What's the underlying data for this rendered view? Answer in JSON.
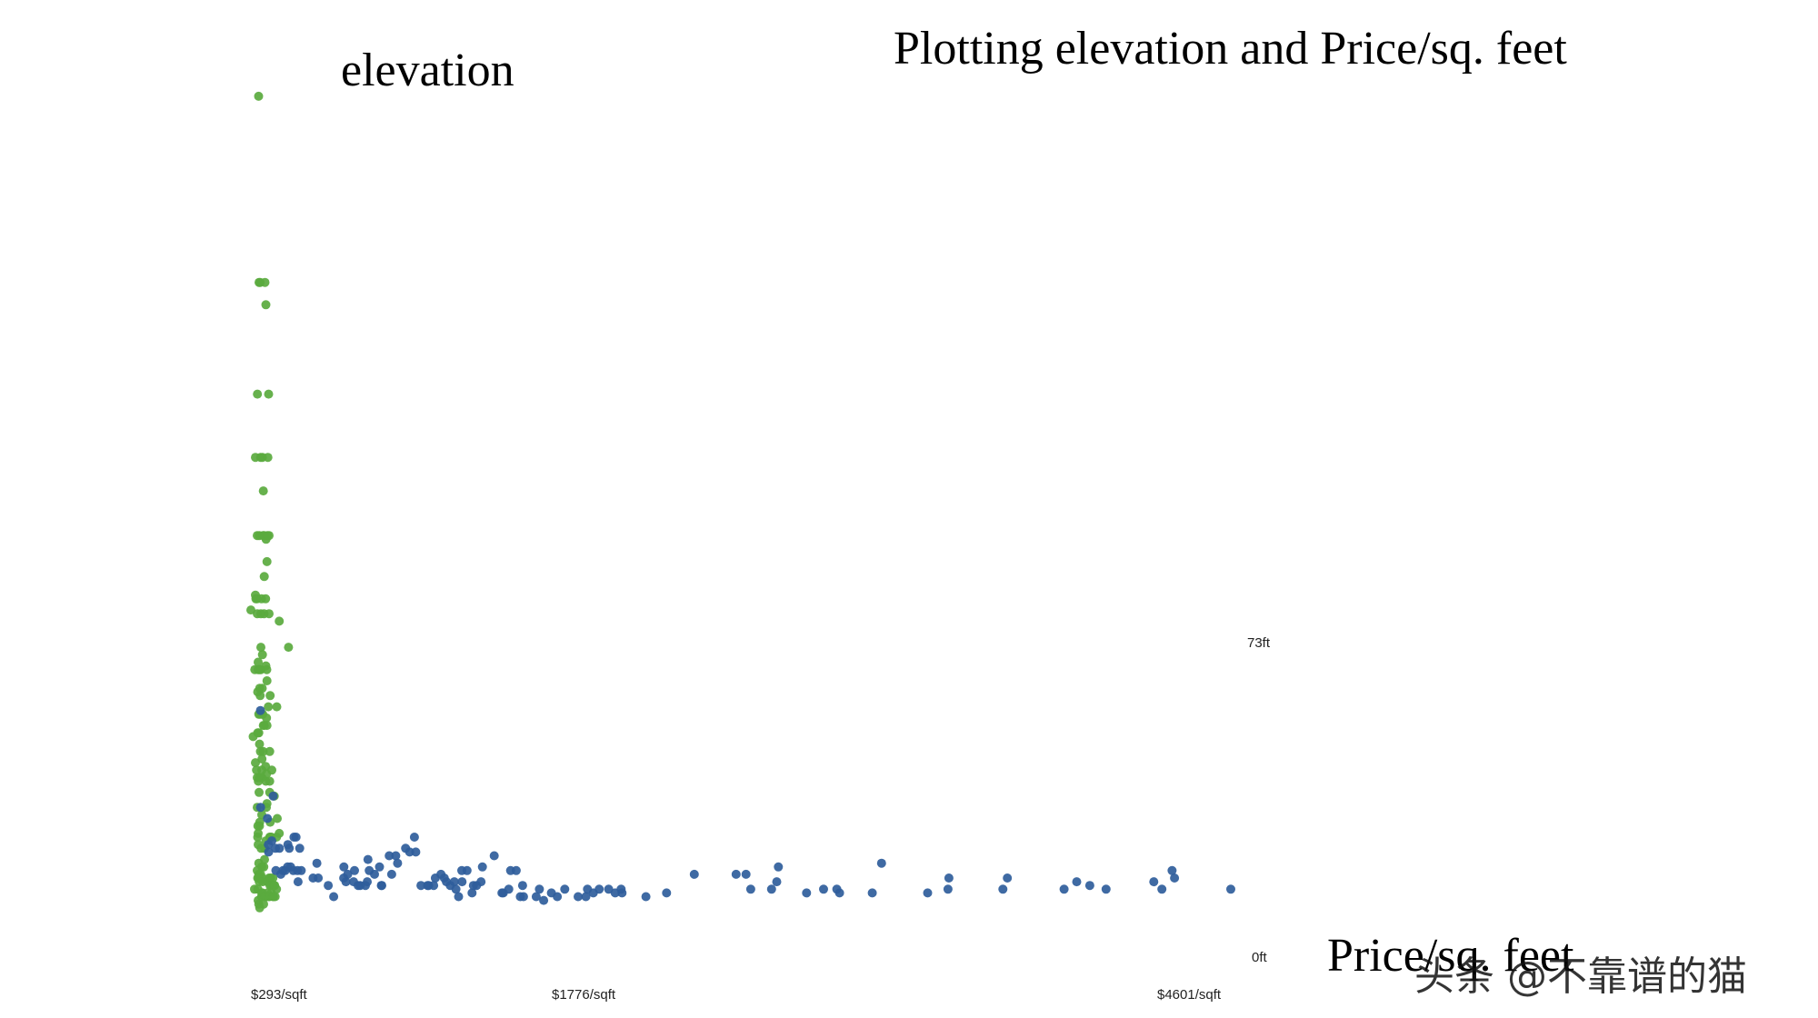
{
  "chart_data": {
    "type": "scatter",
    "title": "Plotting elevation and Price/sq. feet",
    "ylabel": "elevation",
    "xlabel": "Price/sq. feet",
    "y_tick_labels": [
      "73ft",
      "0ft"
    ],
    "x_tick_labels": [
      "$293/sqft",
      "$1776/sqft",
      "$4601/sqft"
    ],
    "series": [
      {
        "name": "green",
        "color": "#5aaa3e",
        "points": [
          [
            303,
            220
          ],
          [
            336,
            101
          ],
          [
            305,
            170
          ],
          [
            310,
            170
          ],
          [
            331,
            170
          ],
          [
            335,
            164
          ],
          [
            298,
            140
          ],
          [
            347,
            140
          ],
          [
            289,
            123
          ],
          [
            312,
            123
          ],
          [
            320,
            123
          ],
          [
            344,
            123
          ],
          [
            324,
            114
          ],
          [
            297,
            102
          ],
          [
            306,
            102
          ],
          [
            323,
            102
          ],
          [
            327,
            102
          ],
          [
            342,
            102
          ],
          [
            349,
            102
          ],
          [
            340,
            95
          ],
          [
            328,
            91
          ],
          [
            289,
            86
          ],
          [
            291,
            85
          ],
          [
            296,
            85
          ],
          [
            316,
            85
          ],
          [
            334,
            85
          ],
          [
            269,
            82
          ],
          [
            297,
            81
          ],
          [
            313,
            81
          ],
          [
            327,
            81
          ],
          [
            349,
            81
          ],
          [
            394,
            79
          ],
          [
            435,
            72
          ],
          [
            313,
            72
          ],
          [
            320,
            70
          ],
          [
            301,
            68
          ],
          [
            335,
            67
          ],
          [
            286,
            66
          ],
          [
            301,
            66
          ],
          [
            307,
            66
          ],
          [
            313,
            66
          ],
          [
            339,
            66
          ],
          [
            340,
            63
          ],
          [
            319,
            61
          ],
          [
            308,
            61
          ],
          [
            299,
            60
          ],
          [
            310,
            59
          ],
          [
            354,
            59
          ],
          [
            383,
            56
          ],
          [
            346,
            56
          ],
          [
            309,
            54
          ],
          [
            304,
            54
          ],
          [
            317,
            54
          ],
          [
            321,
            54
          ],
          [
            338,
            53
          ],
          [
            328,
            51
          ],
          [
            324,
            51
          ],
          [
            340,
            51
          ],
          [
            304,
            49
          ],
          [
            299,
            49
          ],
          [
            279,
            48
          ],
          [
            307,
            46
          ],
          [
            311,
            44
          ],
          [
            323,
            44
          ],
          [
            352,
            44
          ],
          [
            318,
            42
          ],
          [
            289,
            41
          ],
          [
            334,
            40
          ],
          [
            317,
            39
          ],
          [
            294,
            39
          ],
          [
            361,
            39
          ],
          [
            338,
            38
          ],
          [
            297,
            37
          ],
          [
            317,
            37
          ],
          [
            306,
            37
          ],
          [
            311,
            37
          ],
          [
            335,
            36
          ],
          [
            302,
            36
          ],
          [
            352,
            36
          ],
          [
            352,
            33
          ],
          [
            305,
            33
          ],
          [
            372,
            32
          ],
          [
            340,
            30
          ],
          [
            297,
            29
          ],
          [
            337,
            29
          ],
          [
            317,
            27
          ],
          [
            385,
            26
          ],
          [
            354,
            25
          ],
          [
            308,
            25
          ],
          [
            307,
            24
          ],
          [
            300,
            24
          ],
          [
            394,
            22
          ],
          [
            301,
            22
          ],
          [
            355,
            21
          ],
          [
            352,
            21
          ],
          [
            382,
            21
          ],
          [
            359,
            21
          ],
          [
            299,
            21
          ],
          [
            335,
            20
          ],
          [
            301,
            19
          ],
          [
            329,
            18
          ],
          [
            314,
            18
          ],
          [
            329,
            15
          ],
          [
            304,
            14
          ],
          [
            317,
            13
          ],
          [
            326,
            13
          ],
          [
            297,
            12
          ],
          [
            304,
            11
          ],
          [
            312,
            11
          ],
          [
            320,
            10
          ],
          [
            349,
            10
          ],
          [
            356,
            10
          ],
          [
            366,
            10
          ],
          [
            299,
            10
          ],
          [
            303,
            10
          ],
          [
            306,
            9
          ],
          [
            321,
            9
          ],
          [
            341,
            9
          ],
          [
            353,
            8
          ],
          [
            359,
            8
          ],
          [
            369,
            8
          ],
          [
            371,
            8
          ],
          [
            372,
            8
          ],
          [
            374,
            8
          ],
          [
            382,
            7
          ],
          [
            300,
            7
          ],
          [
            285,
            7
          ],
          [
            342,
            6
          ],
          [
            359,
            6
          ],
          [
            317,
            6
          ],
          [
            320,
            6
          ],
          [
            328,
            5
          ],
          [
            330,
            5
          ],
          [
            334,
            5
          ],
          [
            346,
            5
          ],
          [
            351,
            5
          ],
          [
            366,
            5
          ],
          [
            369,
            5
          ],
          [
            376,
            5
          ],
          [
            316,
            5
          ],
          [
            301,
            4
          ],
          [
            304,
            3
          ],
          [
            325,
            3
          ],
          [
            308,
            2
          ]
        ]
      },
      {
        "name": "blue",
        "color": "#2f5d9b",
        "points": [
          [
            311,
            55
          ],
          [
            312,
            29
          ],
          [
            342,
            26
          ],
          [
            347,
            17
          ],
          [
            361,
            20
          ],
          [
            346,
            19
          ],
          [
            367,
            32
          ],
          [
            377,
            18
          ],
          [
            379,
            12
          ],
          [
            395,
            18
          ],
          [
            401,
            11
          ],
          [
            411,
            12
          ],
          [
            431,
            13
          ],
          [
            432,
            19
          ],
          [
            438,
            18
          ],
          [
            456,
            12
          ],
          [
            459,
            21
          ],
          [
            468,
            21
          ],
          [
            474,
            12
          ],
          [
            484,
            18
          ],
          [
            491,
            12
          ],
          [
            560,
            14
          ],
          [
            566,
            10
          ],
          [
            634,
            5
          ],
          [
            678,
            10
          ],
          [
            679,
            13
          ],
          [
            688,
            9
          ],
          [
            696,
            11
          ],
          [
            722,
            9
          ],
          [
            726,
            12
          ],
          [
            751,
            8
          ],
          [
            774,
            8
          ],
          [
            785,
            15
          ],
          [
            791,
            12
          ],
          [
            814,
            11
          ],
          [
            836,
            13
          ],
          [
            844,
            8
          ],
          [
            846,
            8
          ],
          [
            879,
            16
          ],
          [
            908,
            16
          ],
          [
            916,
            14
          ],
          [
            951,
            18
          ],
          [
            969,
            17
          ],
          [
            990,
            21
          ],
          [
            996,
            17
          ],
          [
            1048,
            8
          ],
          [
            1053,
            8
          ],
          [
            1075,
            8
          ],
          [
            1082,
            10
          ],
          [
            1107,
            11
          ],
          [
            1122,
            10
          ],
          [
            1131,
            9
          ],
          [
            1148,
            8
          ],
          [
            1166,
            9
          ],
          [
            1173,
            7
          ],
          [
            1185,
            5
          ],
          [
            1200,
            9
          ],
          [
            1222,
            12
          ],
          [
            1244,
            6
          ],
          [
            1250,
            8
          ],
          [
            1264,
            8
          ],
          [
            1290,
            13
          ],
          [
            1342,
            16
          ],
          [
            1376,
            6
          ],
          [
            1382,
            6
          ],
          [
            1414,
            12
          ],
          [
            1439,
            12
          ],
          [
            1457,
            5
          ],
          [
            1467,
            8
          ],
          [
            1471,
            5
          ],
          [
            1541,
            7
          ],
          [
            1560,
            4
          ],
          [
            1594,
            6
          ],
          [
            1620,
            5
          ],
          [
            1712,
            5
          ],
          [
            1746,
            5
          ],
          [
            1753,
            7
          ],
          [
            1779,
            6
          ],
          [
            1805,
            7
          ],
          [
            1847,
            7
          ],
          [
            1902,
            7
          ],
          [
            1906,
            6
          ],
          [
            2012,
            5
          ],
          [
            2103,
            6
          ],
          [
            2226,
            11
          ],
          [
            2411,
            11
          ],
          [
            2455,
            11
          ],
          [
            2476,
            7
          ],
          [
            2568,
            7
          ],
          [
            2591,
            9
          ],
          [
            2598,
            13
          ],
          [
            2723,
            6
          ],
          [
            2798,
            7
          ],
          [
            2857,
            7
          ],
          [
            2869,
            6
          ],
          [
            3014,
            6
          ],
          [
            3055,
            14
          ],
          [
            3259,
            6
          ],
          [
            3349,
            7
          ],
          [
            3353,
            10
          ],
          [
            3592,
            7
          ],
          [
            3612,
            10
          ],
          [
            3863,
            7
          ],
          [
            3919,
            9
          ],
          [
            3977,
            8
          ],
          [
            4049,
            7
          ],
          [
            4260,
            9
          ],
          [
            4296,
            7
          ],
          [
            4341,
            12
          ],
          [
            4352,
            10
          ],
          [
            4601,
            7
          ],
          [
            444,
            13
          ],
          [
            420,
            12
          ],
          [
            477,
            9
          ],
          [
            543,
            10
          ],
          [
            610,
            8
          ],
          [
            742,
            8
          ],
          [
            782,
            9
          ],
          [
            890,
            11
          ],
          [
            1019,
            8
          ],
          [
            1199,
            12
          ],
          [
            1284,
            9
          ],
          [
            1406,
            7
          ],
          [
            1527,
            5
          ],
          [
            1653,
            7
          ],
          [
            1876,
            6
          ]
        ]
      }
    ]
  },
  "watermark": "头条 @不靠谱的猫"
}
